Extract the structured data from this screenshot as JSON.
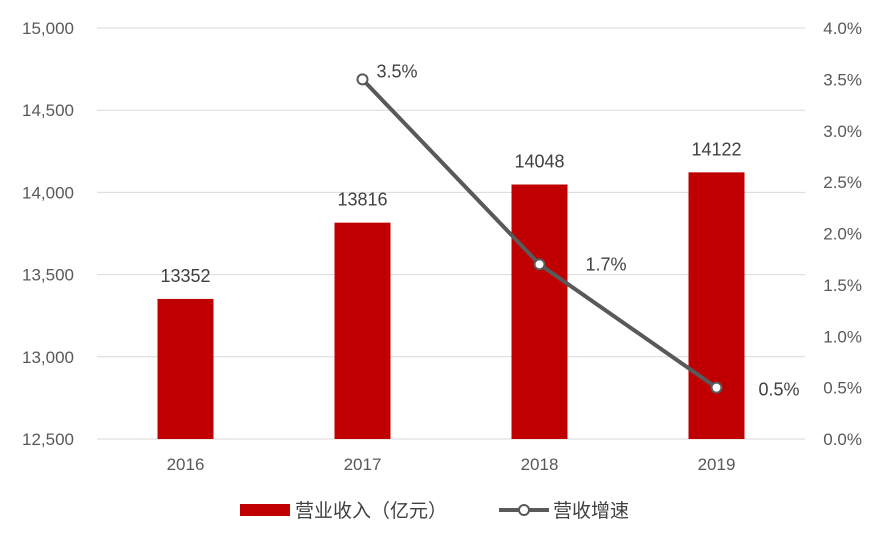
{
  "chart_data": {
    "type": "bar",
    "categories": [
      "2016",
      "2017",
      "2018",
      "2019"
    ],
    "title": "",
    "xlabel": "",
    "ylabel": "",
    "y_left": {
      "range": [
        12500,
        15000
      ],
      "ticks": [
        "12,500",
        "13,000",
        "13,500",
        "14,000",
        "14,500",
        "15,000"
      ]
    },
    "y_right": {
      "range": [
        0,
        4.0
      ],
      "ticks": [
        "0.0%",
        "0.5%",
        "1.0%",
        "1.5%",
        "2.0%",
        "2.5%",
        "3.0%",
        "3.5%",
        "4.0%"
      ]
    },
    "grid": true,
    "legend_position": "bottom",
    "series": [
      {
        "name": "营业收入（亿元）",
        "type": "bar",
        "axis": "left",
        "color": "#c00000",
        "values": [
          13352,
          13816,
          14048,
          14122
        ],
        "labels": [
          "13352",
          "13816",
          "14048",
          "14122"
        ]
      },
      {
        "name": "营收增速",
        "type": "line",
        "axis": "right",
        "color": "#595959",
        "values": [
          null,
          3.5,
          1.7,
          0.5
        ],
        "labels": [
          "",
          "3.5%",
          "1.7%",
          "0.5%"
        ]
      }
    ]
  }
}
